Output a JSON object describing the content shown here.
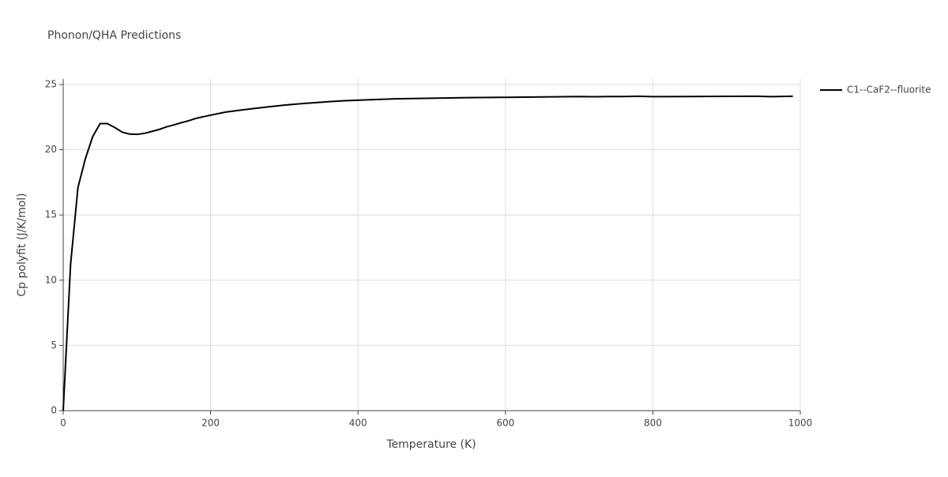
{
  "chart_data": {
    "type": "line",
    "title": "Phonon/QHA Predictions",
    "x_label": "Temperature (K)",
    "y_label": "Cp polyfit (J/K/mol)",
    "x": [
      0,
      10,
      20,
      30,
      40,
      50,
      60,
      70,
      80,
      90,
      100,
      110,
      120,
      130,
      140,
      150,
      160,
      170,
      180,
      190,
      200,
      220,
      240,
      260,
      280,
      300,
      320,
      340,
      360,
      380,
      400,
      450,
      500,
      550,
      600,
      650,
      700,
      720,
      740,
      760,
      780,
      800,
      850,
      900,
      940,
      960,
      990
    ],
    "series": [
      {
        "name": "C1--CaF2--fluorite",
        "color": "#000000",
        "values": [
          0,
          11.2,
          17.1,
          19.3,
          21.0,
          22.0,
          22.0,
          21.7,
          21.35,
          21.2,
          21.18,
          21.25,
          21.4,
          21.55,
          21.75,
          21.9,
          22.07,
          22.22,
          22.4,
          22.53,
          22.65,
          22.88,
          23.03,
          23.17,
          23.3,
          23.42,
          23.52,
          23.6,
          23.68,
          23.75,
          23.8,
          23.9,
          23.95,
          23.99,
          24.02,
          24.05,
          24.08,
          24.06,
          24.08,
          24.08,
          24.1,
          24.07,
          24.08,
          24.09,
          24.1,
          24.07,
          24.1
        ]
      }
    ],
    "xlim": [
      0,
      1000
    ],
    "xticks": [
      0,
      200,
      400,
      600,
      800,
      1000
    ],
    "ylim": [
      0,
      25
    ],
    "yticks": [
      0,
      5,
      10,
      15,
      20,
      25
    ],
    "grid": true
  }
}
